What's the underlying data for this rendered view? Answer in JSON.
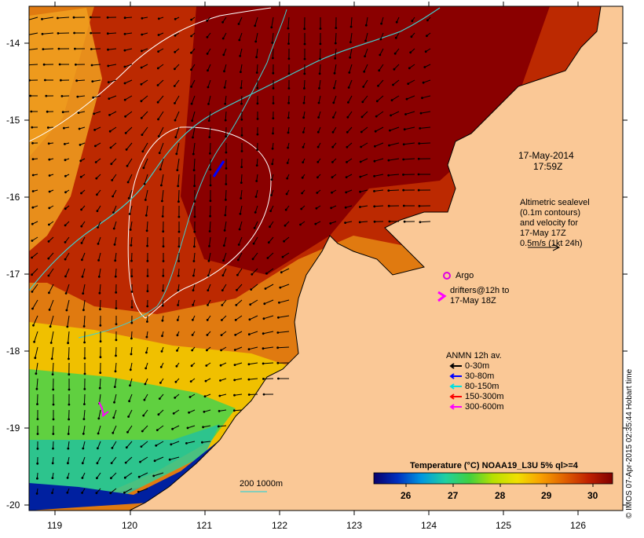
{
  "map": {
    "timestamp_date": "17-May-2014",
    "timestamp_time": "17:59Z",
    "altimetry_lines": [
      "Altimetric sealevel",
      "(0.1m contours)",
      "and velocity for",
      "17-May 17Z",
      "0.5m/s (1kt 24h)"
    ],
    "argo_label": "Argo",
    "drifters_lines": [
      "drifters@12h to",
      "17-May 18Z"
    ],
    "anmn_title": "ANMN 12h av.",
    "anmn_legend": [
      {
        "label": "0-30m",
        "color": "#000000"
      },
      {
        "label": "30-80m",
        "color": "#0000ff"
      },
      {
        "label": "80-150m",
        "color": "#00e0e0"
      },
      {
        "label": "150-300m",
        "color": "#ff0000"
      },
      {
        "label": "300-600m",
        "color": "#ff00ff"
      }
    ],
    "depth_contour_label": "200  1000m",
    "colorbar_title": "Temperature (°C) NOAA19_L3U 5% ql>=4",
    "colorbar_ticks": [
      "26",
      "27",
      "28",
      "29",
      "30"
    ],
    "colorbar_colors": [
      "#08006a",
      "#0030c0",
      "#0098e0",
      "#20d0a0",
      "#40d040",
      "#b8e000",
      "#f0e000",
      "#f8a000",
      "#e06000",
      "#c02000",
      "#800000"
    ],
    "lon_ticks": [
      "119",
      "120",
      "121",
      "122",
      "123",
      "124",
      "125",
      "126"
    ],
    "lat_ticks": [
      "-14",
      "-15",
      "-16",
      "-17",
      "-18",
      "-19",
      "-20"
    ],
    "credit": "© IMOS 07-Apr-2015 02:35:44 Hobart time",
    "colors": {
      "land": "#fac896",
      "argo": "#e000e0",
      "contour": "#ffffff",
      "shelf": "#40d0d0"
    }
  }
}
